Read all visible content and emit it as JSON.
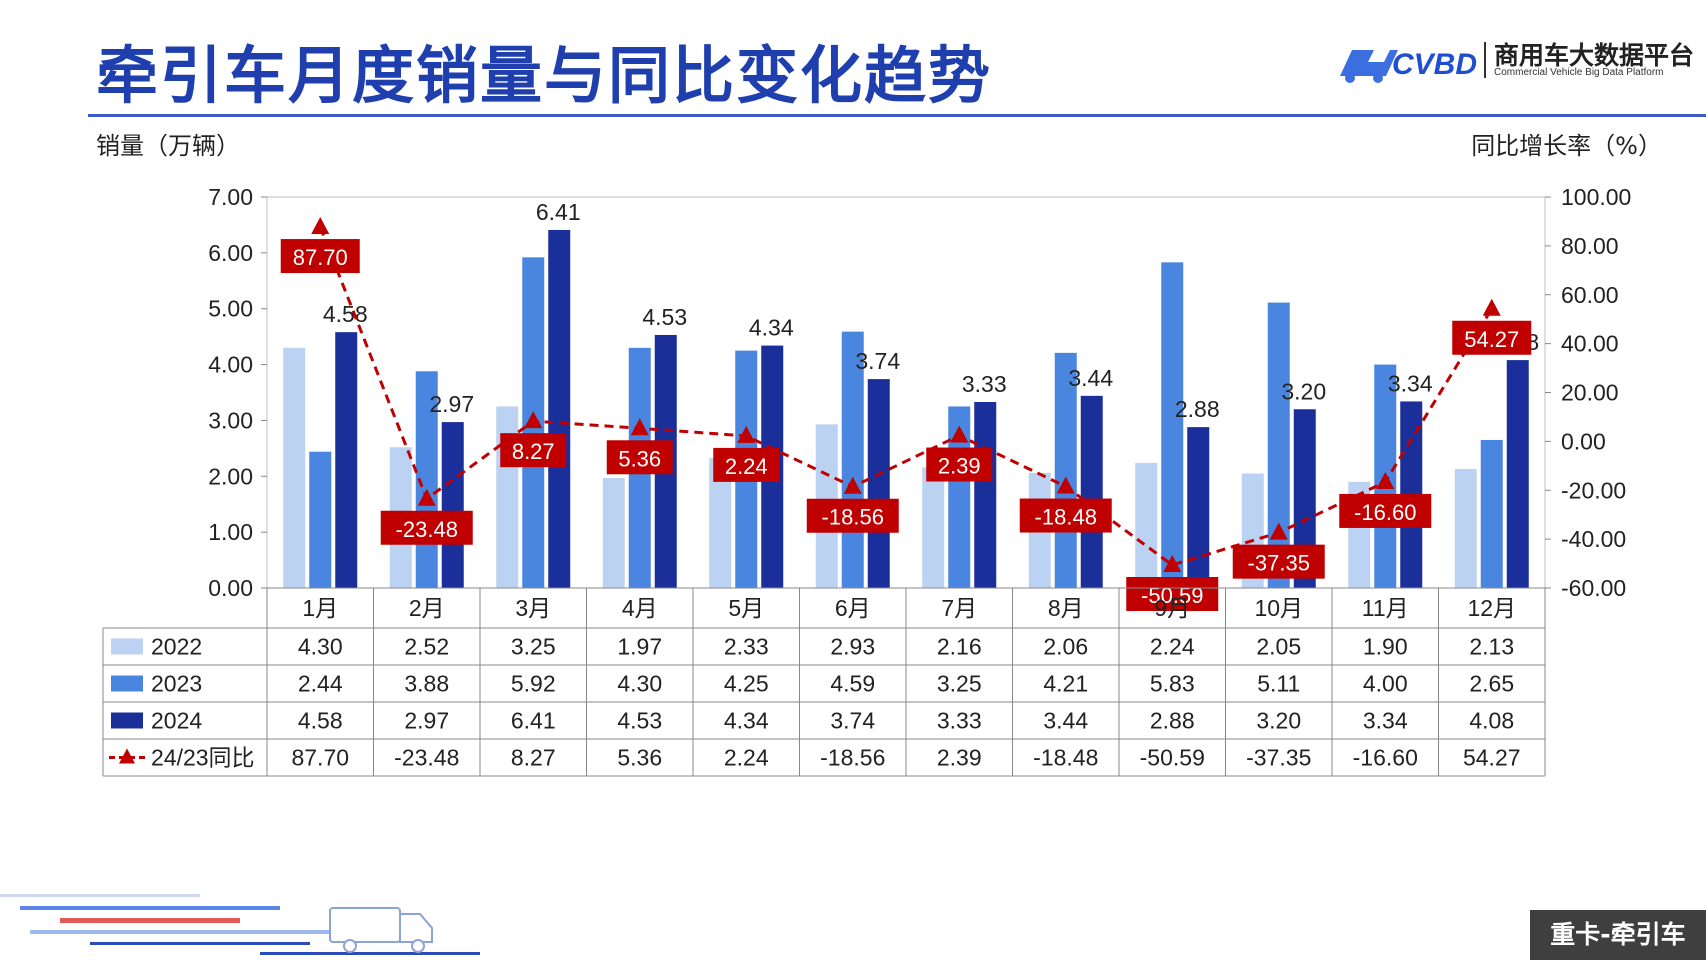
{
  "header": {
    "title": "牵引车月度销量与同比变化趋势",
    "brand_name": "商用车大数据平台",
    "brand_sub": "Commercial Vehicle Big Data Platform",
    "brand_mark": "CVBD"
  },
  "axes": {
    "left_title": "销量（万辆）",
    "right_title": "同比增长率（%）"
  },
  "footer": {
    "tag": "重卡-牵引车"
  },
  "colors": {
    "title": "#1f3fae",
    "s2022": "#bcd2f2",
    "s2023": "#4a86e0",
    "s2024": "#1a2f9a",
    "yoy": "#c00000",
    "grid": "#d0d0d0"
  },
  "chart_data": {
    "type": "bar",
    "categories": [
      "1月",
      "2月",
      "3月",
      "4月",
      "5月",
      "6月",
      "7月",
      "8月",
      "9月",
      "10月",
      "11月",
      "12月"
    ],
    "series": [
      {
        "name": "2022",
        "axis": "left",
        "values": [
          4.3,
          2.52,
          3.25,
          1.97,
          2.33,
          2.93,
          2.16,
          2.06,
          2.24,
          2.05,
          1.9,
          2.13
        ]
      },
      {
        "name": "2023",
        "axis": "left",
        "values": [
          2.44,
          3.88,
          5.92,
          4.3,
          4.25,
          4.59,
          3.25,
          4.21,
          5.83,
          5.11,
          4.0,
          2.65
        ]
      },
      {
        "name": "2024",
        "axis": "left",
        "values": [
          4.58,
          2.97,
          6.41,
          4.53,
          4.34,
          3.74,
          3.33,
          3.44,
          2.88,
          3.2,
          3.34,
          4.08
        ]
      },
      {
        "name": "24/23同比",
        "axis": "right",
        "type": "line",
        "values": [
          87.7,
          -23.48,
          8.27,
          5.36,
          2.24,
          -18.56,
          2.39,
          -18.48,
          -50.59,
          -37.35,
          -16.6,
          54.27
        ]
      }
    ],
    "bar_labels_2024": [
      "4.58",
      "2.97",
      "6.41",
      "4.53",
      "4.34",
      "3.74",
      "3.33",
      "3.44",
      "2.88",
      "3.20",
      "3.34",
      "4.08"
    ],
    "yoy_labels": [
      "87.70",
      "-23.48",
      "8.27",
      "5.36",
      "2.24",
      "-18.56",
      "2.39",
      "-18.48",
      "-50.59",
      "-37.35",
      "-16.60",
      "54.27"
    ],
    "table_rows": [
      {
        "label": "2022",
        "cells": [
          "4.30",
          "2.52",
          "3.25",
          "1.97",
          "2.33",
          "2.93",
          "2.16",
          "2.06",
          "2.24",
          "2.05",
          "1.90",
          "2.13"
        ]
      },
      {
        "label": "2023",
        "cells": [
          "2.44",
          "3.88",
          "5.92",
          "4.30",
          "4.25",
          "4.59",
          "3.25",
          "4.21",
          "5.83",
          "5.11",
          "4.00",
          "2.65"
        ]
      },
      {
        "label": "2024",
        "cells": [
          "4.58",
          "2.97",
          "6.41",
          "4.53",
          "4.34",
          "3.74",
          "3.33",
          "3.44",
          "2.88",
          "3.20",
          "3.34",
          "4.08"
        ]
      },
      {
        "label": "24/23同比",
        "cells": [
          "87.70",
          "-23.48",
          "8.27",
          "5.36",
          "2.24",
          "-18.56",
          "2.39",
          "-18.48",
          "-50.59",
          "-37.35",
          "-16.60",
          "54.27"
        ]
      }
    ],
    "y_left": {
      "min": 0,
      "max": 7,
      "ticks": [
        "0.00",
        "1.00",
        "2.00",
        "3.00",
        "4.00",
        "5.00",
        "6.00",
        "7.00"
      ]
    },
    "y_right": {
      "min": -60,
      "max": 100,
      "ticks": [
        "-60.00",
        "-40.00",
        "-20.00",
        "0.00",
        "20.00",
        "40.00",
        "60.00",
        "80.00",
        "100.00"
      ]
    },
    "grid": false,
    "legend": "data-table"
  }
}
